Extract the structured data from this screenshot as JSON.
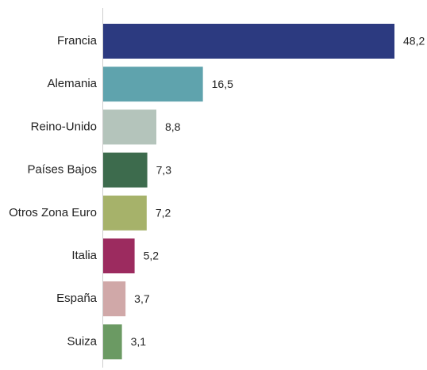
{
  "chart_data": {
    "type": "bar",
    "orientation": "horizontal",
    "title": "",
    "xlabel": "",
    "ylabel": "",
    "categories": [
      "Francia",
      "Alemania",
      "Reino-Unido",
      "Países Bajos",
      "Otros Zona Euro",
      "Italia",
      "España",
      "Suiza"
    ],
    "values": [
      48.2,
      16.5,
      8.8,
      7.3,
      7.2,
      5.2,
      3.7,
      3.1
    ],
    "value_labels": [
      "48,2",
      "16,5",
      "8,8",
      "7,3",
      "7,2",
      "5,2",
      "3,7",
      "3,1"
    ],
    "colors": [
      "#2c3a80",
      "#5fa3ad",
      "#b4c4bb",
      "#3d6b4d",
      "#a6b26a",
      "#9c2b5f",
      "#d0a8a8",
      "#6b9a63"
    ],
    "xlim": [
      0,
      48.2
    ],
    "grid": false,
    "legend": "none"
  }
}
